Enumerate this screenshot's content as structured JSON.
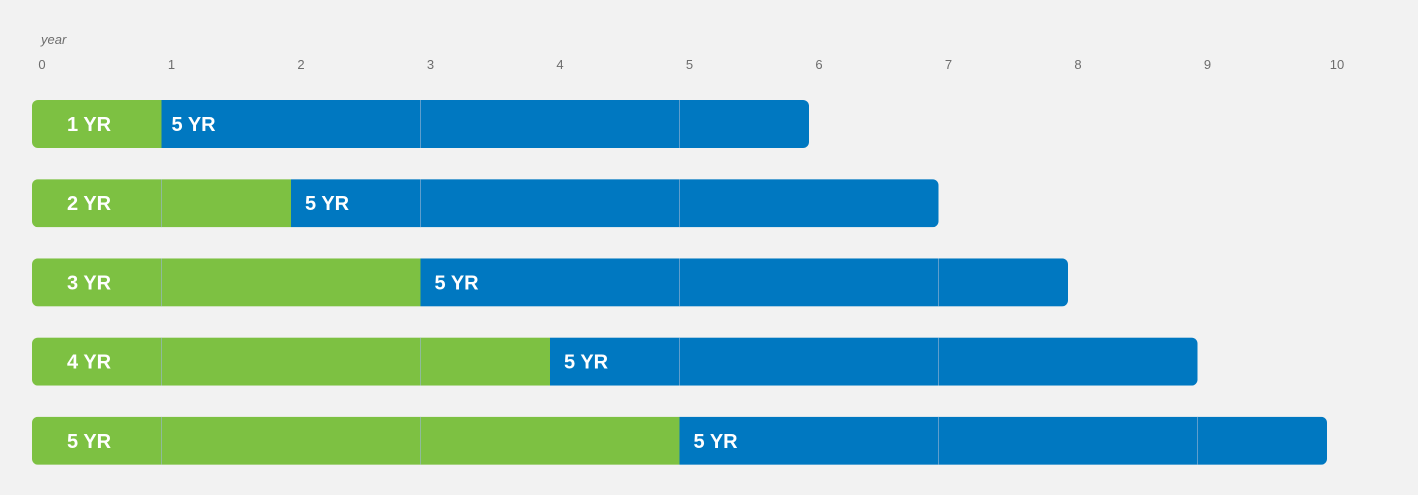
{
  "chart_data": {
    "type": "bar",
    "orientation": "horizontal",
    "stacked": true,
    "x_unit_label": "year",
    "xlim": [
      0,
      10
    ],
    "x_ticks": [
      "0",
      "1",
      "2",
      "3",
      "4",
      "5",
      "6",
      "7",
      "8",
      "9",
      "10"
    ],
    "grid": false,
    "colors": {
      "first": "#7dc142",
      "second": "#0078c1",
      "divider": "#9bb7d6"
    },
    "rows": [
      {
        "start": 0,
        "first_value": 1,
        "first_label": "1 YR",
        "second_value": 5,
        "second_label": "5 YR"
      },
      {
        "start": 0,
        "first_value": 2,
        "first_label": "2 YR",
        "second_value": 5,
        "second_label": "5 YR"
      },
      {
        "start": 0,
        "first_value": 3,
        "first_label": "3 YR",
        "second_value": 5,
        "second_label": "5 YR"
      },
      {
        "start": 0,
        "first_value": 4,
        "first_label": "4 YR",
        "second_value": 5,
        "second_label": "5 YR"
      },
      {
        "start": 0,
        "first_value": 5,
        "first_label": "5 YR",
        "second_value": 5,
        "second_label": "5 YR"
      }
    ]
  }
}
